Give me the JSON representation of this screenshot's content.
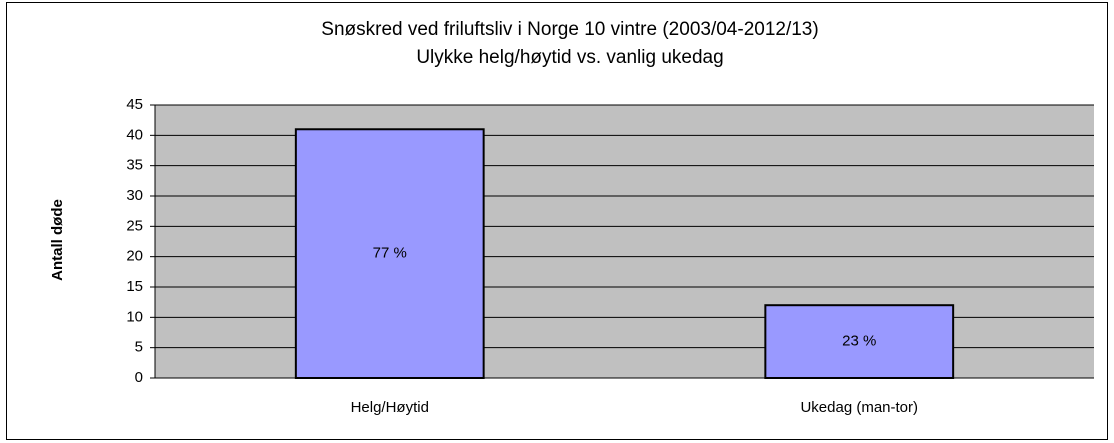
{
  "chart_data": {
    "type": "bar",
    "title": "Snøskred ved friluftsliv i Norge 10 vintre (2003/04-2012/13)",
    "subtitle": "Ulykke helg/høytid vs. vanlig ukedag",
    "y_label": "Antall døde",
    "categories": [
      "Helg/Høytid",
      "Ukedag (man-tor)"
    ],
    "values": [
      41,
      12
    ],
    "annotations": [
      "77 %",
      "23 %"
    ],
    "color": "#9999ff",
    "ylim": [
      0,
      45
    ],
    "yticks": [
      0,
      5,
      10,
      15,
      20,
      25,
      30,
      35,
      40,
      45
    ],
    "grid": true
  }
}
